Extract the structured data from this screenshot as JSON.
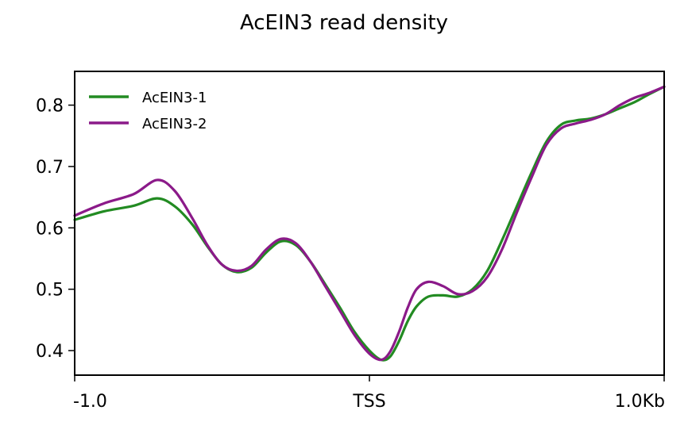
{
  "chart_data": {
    "type": "line",
    "title": "AcEIN3 read density",
    "xlabel": "",
    "ylabel": "",
    "xlim": [
      -1.0,
      1.0
    ],
    "ylim": [
      0.36,
      0.855
    ],
    "x_ticks": [
      {
        "value": -1.0,
        "label": "-1.0"
      },
      {
        "value": 0.0,
        "label": "TSS"
      },
      {
        "value": 1.0,
        "label": "1.0Kb"
      }
    ],
    "y_ticks": [
      {
        "value": 0.4,
        "label": "0.4"
      },
      {
        "value": 0.5,
        "label": "0.5"
      },
      {
        "value": 0.6,
        "label": "0.6"
      },
      {
        "value": 0.7,
        "label": "0.7"
      },
      {
        "value": 0.8,
        "label": "0.8"
      }
    ],
    "legend_position": "top-left",
    "grid": false,
    "series": [
      {
        "name": "AcEIN3-1",
        "color": "#228b22",
        "x": [
          -1.0,
          -0.9,
          -0.8,
          -0.72,
          -0.66,
          -0.6,
          -0.55,
          -0.5,
          -0.45,
          -0.4,
          -0.35,
          -0.3,
          -0.25,
          -0.2,
          -0.15,
          -0.1,
          -0.05,
          0.0,
          0.04,
          0.07,
          0.1,
          0.13,
          0.16,
          0.2,
          0.25,
          0.3,
          0.35,
          0.4,
          0.45,
          0.5,
          0.55,
          0.6,
          0.65,
          0.7,
          0.75,
          0.8,
          0.85,
          0.9,
          0.95,
          1.0
        ],
        "y": [
          0.613,
          0.627,
          0.636,
          0.648,
          0.635,
          0.605,
          0.57,
          0.54,
          0.528,
          0.535,
          0.56,
          0.578,
          0.572,
          0.545,
          0.508,
          0.47,
          0.43,
          0.4,
          0.385,
          0.39,
          0.415,
          0.448,
          0.472,
          0.488,
          0.49,
          0.488,
          0.5,
          0.53,
          0.58,
          0.635,
          0.69,
          0.74,
          0.768,
          0.775,
          0.778,
          0.785,
          0.795,
          0.805,
          0.818,
          0.83
        ]
      },
      {
        "name": "AcEIN3-2",
        "color": "#8b1a89",
        "x": [
          -1.0,
          -0.9,
          -0.8,
          -0.72,
          -0.66,
          -0.6,
          -0.55,
          -0.5,
          -0.45,
          -0.4,
          -0.35,
          -0.3,
          -0.25,
          -0.2,
          -0.15,
          -0.1,
          -0.05,
          0.0,
          0.04,
          0.07,
          0.1,
          0.13,
          0.16,
          0.2,
          0.25,
          0.3,
          0.35,
          0.4,
          0.45,
          0.5,
          0.55,
          0.6,
          0.65,
          0.7,
          0.75,
          0.8,
          0.85,
          0.9,
          0.95,
          1.0
        ],
        "y": [
          0.62,
          0.64,
          0.655,
          0.678,
          0.66,
          0.615,
          0.572,
          0.54,
          0.53,
          0.538,
          0.565,
          0.582,
          0.575,
          0.545,
          0.505,
          0.465,
          0.425,
          0.395,
          0.385,
          0.398,
          0.43,
          0.47,
          0.5,
          0.512,
          0.505,
          0.492,
          0.497,
          0.52,
          0.565,
          0.625,
          0.682,
          0.735,
          0.762,
          0.77,
          0.776,
          0.785,
          0.8,
          0.812,
          0.82,
          0.83
        ]
      }
    ]
  }
}
